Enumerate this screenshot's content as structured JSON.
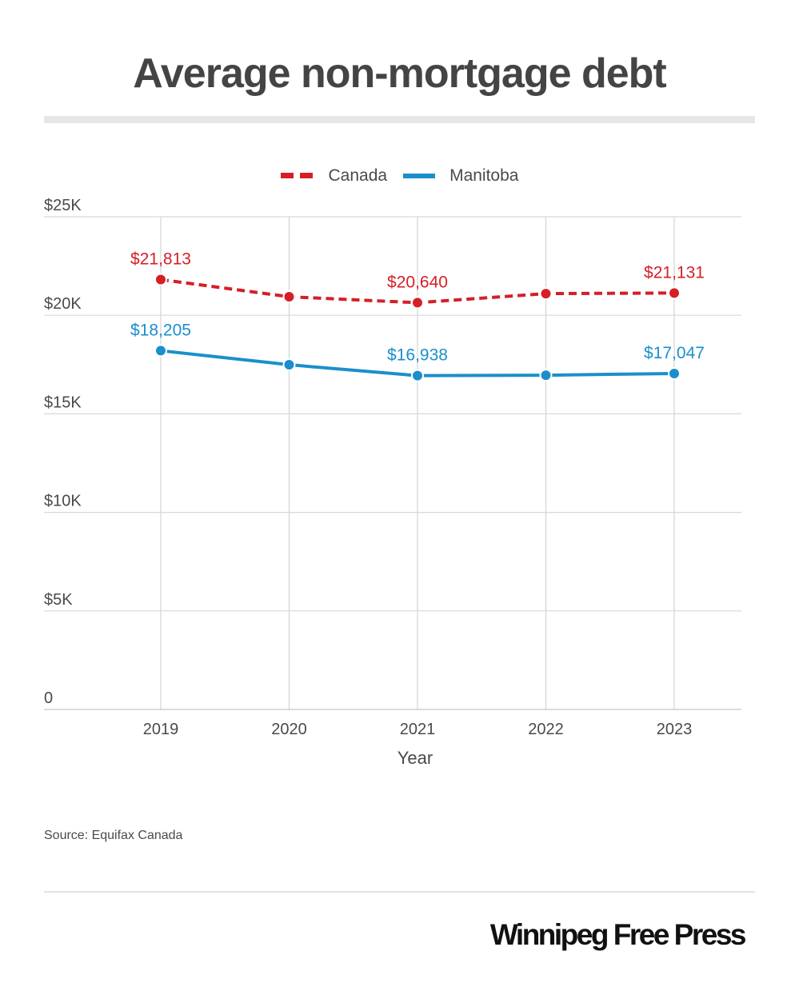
{
  "title": "Average non-mortgage debt",
  "source": "Source: Equifax Canada",
  "brand": "Winnipeg Free Press",
  "legend": {
    "position": "top-center",
    "items": [
      {
        "label": "Canada",
        "style": "dashed",
        "color": "#d51f26"
      },
      {
        "label": "Manitoba",
        "style": "solid",
        "color": "#1a8fcc"
      }
    ]
  },
  "chart_data": {
    "type": "line",
    "title": "Average non-mortgage debt",
    "xlabel": "Year",
    "ylabel": "",
    "x": [
      "2019",
      "2020",
      "2021",
      "2022",
      "2023"
    ],
    "ylim": [
      0,
      25000
    ],
    "yticks": [
      0,
      5000,
      10000,
      15000,
      20000,
      25000
    ],
    "ytick_labels": [
      "0",
      "$5K",
      "$10K",
      "$15K",
      "$20K",
      "$25K"
    ],
    "grid": true,
    "series": [
      {
        "name": "Canada",
        "color": "#d51f26",
        "dash": true,
        "values": [
          21813,
          20940,
          20640,
          21100,
          21131
        ],
        "labels": [
          "$21,813",
          null,
          "$20,640",
          null,
          "$21,131"
        ]
      },
      {
        "name": "Manitoba",
        "color": "#1a8fcc",
        "dash": false,
        "values": [
          18205,
          17490,
          16938,
          16960,
          17047
        ],
        "labels": [
          "$18,205",
          null,
          "$16,938",
          null,
          "$17,047"
        ]
      }
    ]
  }
}
